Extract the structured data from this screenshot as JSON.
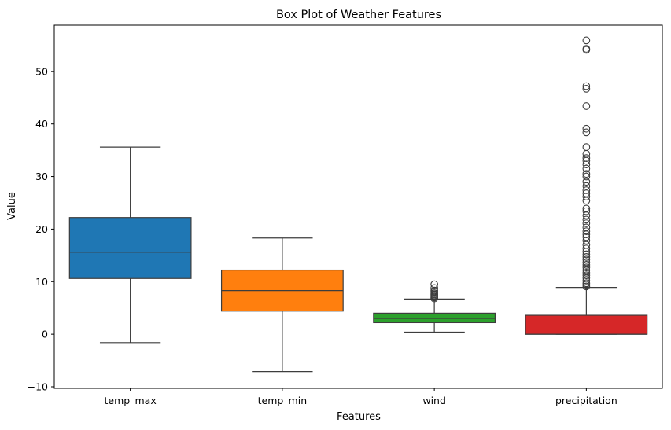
{
  "chart_data": {
    "type": "box",
    "title": "Box Plot of Weather Features",
    "xlabel": "Features",
    "ylabel": "Value",
    "ylim": [
      -10.3,
      58.8
    ],
    "yticks": [
      -10,
      0,
      10,
      20,
      30,
      40,
      50
    ],
    "grid": false,
    "legend": "none",
    "series": [
      {
        "category": "temp_max",
        "color": "#1f77b4",
        "whisker_low": -1.6,
        "q1": 10.6,
        "median": 15.6,
        "q3": 22.2,
        "whisker_high": 35.6,
        "outliers": []
      },
      {
        "category": "temp_min",
        "color": "#ff7f0e",
        "whisker_low": -7.1,
        "q1": 4.4,
        "median": 8.3,
        "q3": 12.2,
        "whisker_high": 18.3,
        "outliers": []
      },
      {
        "category": "wind",
        "color": "#2ca02c",
        "whisker_low": 0.4,
        "q1": 2.2,
        "median": 3.0,
        "q3": 4.0,
        "whisker_high": 6.7,
        "outliers": [
          6.8,
          7.0,
          7.2,
          7.4,
          7.6,
          7.8,
          8.1,
          8.3,
          8.8,
          9.5
        ]
      },
      {
        "category": "precipitation",
        "color": "#d62728",
        "whisker_low": 0.0,
        "q1": 0.0,
        "median": 0.0,
        "q3": 3.6,
        "whisker_high": 8.9,
        "outliers": [
          9.1,
          9.4,
          9.7,
          10.2,
          10.7,
          11.2,
          11.7,
          12.2,
          12.7,
          13.2,
          13.7,
          14.2,
          14.7,
          15.2,
          15.7,
          16.3,
          17.0,
          17.8,
          18.5,
          19.0,
          19.6,
          20.3,
          21.1,
          21.8,
          22.6,
          23.4,
          23.9,
          25.4,
          26.2,
          26.8,
          27.4,
          28.2,
          29.0,
          30.0,
          30.5,
          31.5,
          32.3,
          33.0,
          33.5,
          34.3,
          35.6,
          38.4,
          39.1,
          43.4,
          46.7,
          47.2,
          54.1,
          54.3,
          55.9
        ]
      }
    ]
  }
}
